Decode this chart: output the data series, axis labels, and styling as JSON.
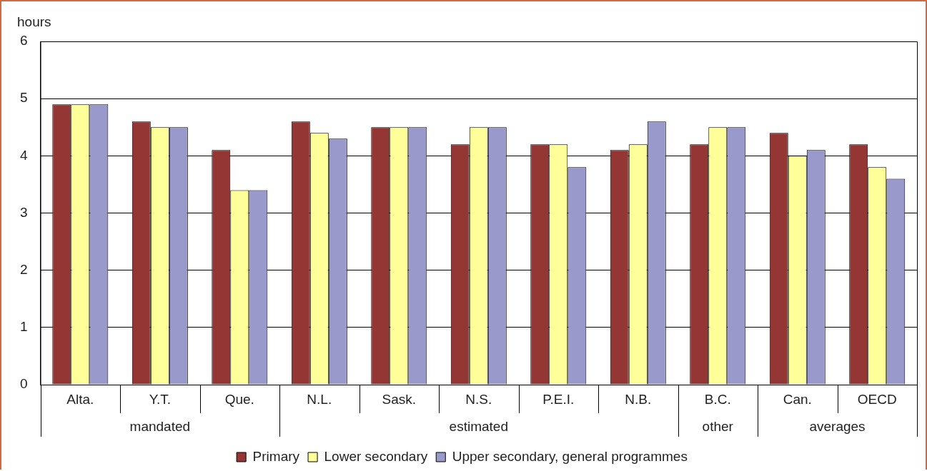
{
  "chart_data": {
    "type": "bar",
    "ylabel": "hours",
    "categories": [
      "Alta.",
      "Y.T.",
      "Que.",
      "N.L.",
      "Sask.",
      "N.S.",
      "P.E.I.",
      "N.B.",
      "B.C.",
      "Can.",
      "OECD"
    ],
    "series": [
      {
        "name": "Primary",
        "color": "#943634",
        "values": [
          4.9,
          4.6,
          4.1,
          4.6,
          4.5,
          4.2,
          4.2,
          4.1,
          4.2,
          4.4,
          4.2
        ]
      },
      {
        "name": "Lower secondary",
        "color": "#ffff99",
        "values": [
          4.9,
          4.5,
          3.4,
          4.4,
          4.5,
          4.5,
          4.2,
          4.2,
          4.5,
          4.0,
          3.8
        ]
      },
      {
        "name": "Upper secondary, general programmes",
        "color": "#9999cc",
        "values": [
          4.9,
          4.5,
          3.4,
          4.3,
          4.5,
          4.5,
          3.8,
          4.6,
          4.5,
          4.1,
          3.6
        ]
      }
    ],
    "ylim": [
      0,
      6
    ],
    "yticks": [
      0,
      1,
      2,
      3,
      4,
      5,
      6
    ],
    "grid": "y",
    "legend": "bottom",
    "annotations": [
      "mandated",
      "estimated",
      "other",
      "averages"
    ]
  }
}
